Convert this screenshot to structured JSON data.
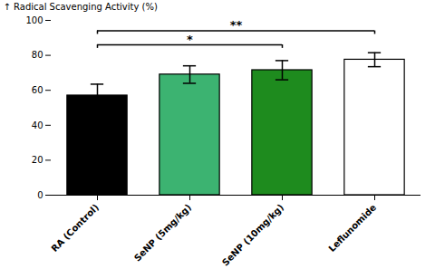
{
  "chart_data": {
    "type": "bar",
    "categories": [
      "RA (Control)",
      "SeNP (5mg/kg)",
      "SeNP (10mg/kg)",
      "Leflunomide"
    ],
    "values": [
      57.0,
      69.0,
      71.5,
      77.5
    ],
    "errors": [
      6.5,
      5.0,
      5.5,
      4.0
    ],
    "colors": [
      "#000000",
      "#3CB371",
      "#1E8B1E",
      "#ffffff"
    ],
    "ylabel": "Radical Scavenging Activity (%)",
    "ylim": [
      0,
      100
    ],
    "yticks": [
      0,
      20,
      40,
      60,
      80,
      100
    ],
    "grid": false,
    "annotations": [
      {
        "x1": "RA (Control)",
        "x2": "SeNP (10mg/kg)",
        "y": 86,
        "label": "*"
      },
      {
        "x1": "RA (Control)",
        "x2": "Leflunomide",
        "y": 94,
        "label": "**"
      }
    ]
  }
}
